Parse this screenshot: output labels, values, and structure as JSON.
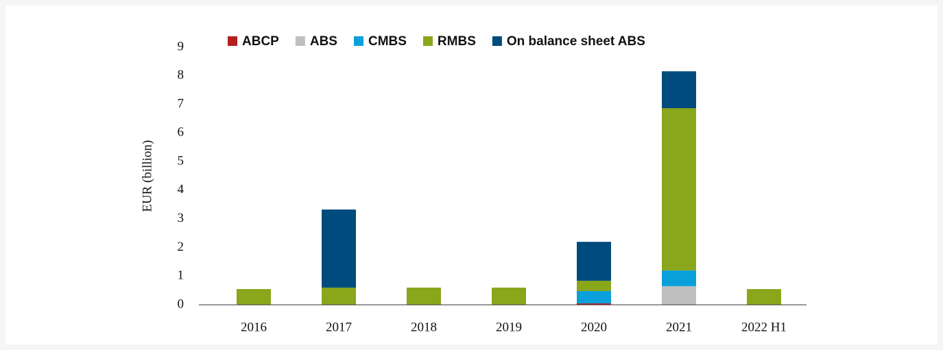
{
  "chart_data": {
    "type": "stacked_bar",
    "y_label": "EUR (billion)",
    "categories": [
      "2016",
      "2017",
      "2018",
      "2019",
      "2020",
      "2021",
      "2022 H1"
    ],
    "series": [
      {
        "name": "ABCP",
        "color": "#b3201f",
        "values": [
          0,
          0,
          0,
          0,
          0.05,
          0,
          0
        ]
      },
      {
        "name": "ABS",
        "color": "#bfbfbf",
        "values": [
          0,
          0,
          0,
          0,
          0,
          0.65,
          0
        ]
      },
      {
        "name": "CMBS",
        "color": "#0aa0dc",
        "values": [
          0,
          0,
          0,
          0,
          0.43,
          0.55,
          0
        ]
      },
      {
        "name": "RMBS",
        "color": "#8aa61b",
        "values": [
          0.55,
          0.6,
          0.6,
          0.6,
          0.36,
          5.67,
          0.55
        ]
      },
      {
        "name": "On balance sheet ABS",
        "color": "#004b7d",
        "values": [
          0,
          2.73,
          0,
          0,
          1.36,
          1.29,
          0
        ]
      }
    ],
    "ylim": [
      0,
      9
    ],
    "yticks": [
      0,
      1,
      2,
      3,
      4,
      5,
      6,
      7,
      8,
      9
    ],
    "grid": false,
    "legend": "top"
  }
}
